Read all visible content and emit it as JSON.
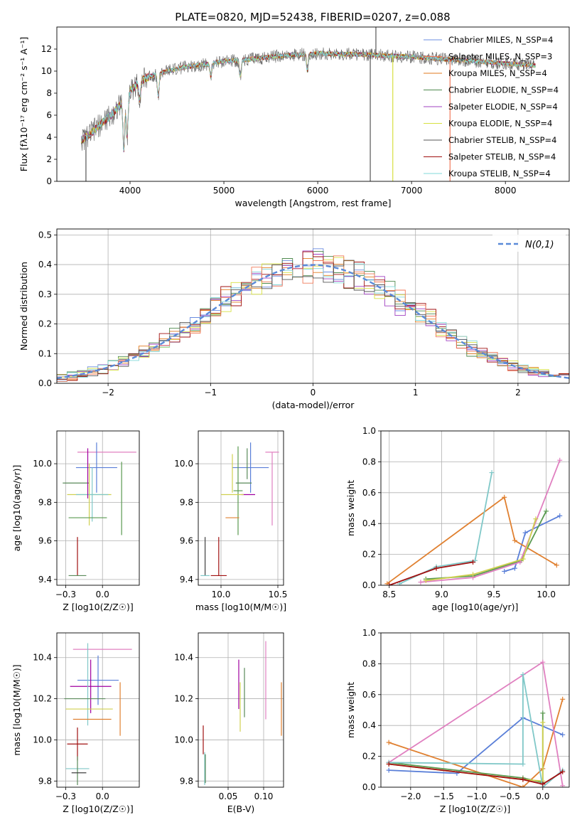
{
  "title": "PLATE=0820, MJD=52438, FIBERID=0207, z=0.088",
  "colors": {
    "series": [
      "#6b8ce0",
      "#f07a5a",
      "#e07a1c",
      "#4f8a4f",
      "#a040c0",
      "#d6e040",
      "#555555",
      "#a01010",
      "#80d8d8"
    ],
    "markers": [
      "#5a7fd8",
      "#e08030",
      "#5a9a50",
      "#e080c0",
      "#d0d050",
      "#80c8c8",
      "#a01010",
      "#a000a0",
      "#5a8a5a",
      "#404040"
    ],
    "gaussian": "#5a8ad8"
  },
  "chart_data": [
    {
      "id": "spectrum",
      "type": "line",
      "xlabel": "wavelength [Angstrom, rest frame]",
      "ylabel": "Flux [fλ10⁻¹⁷ erg cm⁻² s⁻¹ A⁻¹]",
      "xlim": [
        3220,
        8680
      ],
      "ylim": [
        0,
        14
      ],
      "xticks": [
        4000,
        5000,
        6000,
        7000,
        8000
      ],
      "yticks": [
        0,
        2,
        4,
        6,
        8,
        10,
        12
      ],
      "grid": false,
      "legend_position": "upper-right",
      "legend": [
        "Chabrier MILES, N_SSP=4",
        "Salpeter MILES, N_SSP=3",
        "Kroupa MILES, N_SSP=4",
        "Chabrier ELODIE, N_SSP=4",
        "Salpeter ELODIE, N_SSP=4",
        "Kroupa ELODIE, N_SSP=4",
        "Chabrier STELIB, N_SSP=4",
        "Salpeter STELIB, N_SSP=4",
        "Kroupa STELIB, N_SSP=4"
      ],
      "continuum": {
        "x": [
          3500,
          3600,
          3700,
          3800,
          3900,
          4000,
          4100,
          4200,
          4400,
          4600,
          4800,
          5000,
          5200,
          5500,
          5800,
          6000,
          6500,
          7000,
          7500,
          8000,
          8300
        ],
        "y": [
          3.8,
          4.5,
          5.3,
          6.0,
          7.0,
          8.2,
          9.0,
          9.5,
          10.0,
          10.4,
          10.6,
          10.9,
          11.0,
          11.3,
          11.5,
          11.6,
          11.5,
          11.3,
          11.0,
          10.7,
          10.5
        ]
      },
      "absorption_features": [
        {
          "x": 3934,
          "depth": 4.5
        },
        {
          "x": 3969,
          "depth": 3.8
        },
        {
          "x": 4102,
          "depth": 1.5
        },
        {
          "x": 4300,
          "depth": 2.0
        },
        {
          "x": 4861,
          "depth": 1.2
        },
        {
          "x": 5175,
          "depth": 1.5
        },
        {
          "x": 5890,
          "depth": 1.5
        }
      ],
      "data_spikes": [
        {
          "x": 3530,
          "y": 0
        },
        {
          "x": 6560,
          "y": 0
        },
        {
          "x": 6620,
          "y": 14
        },
        {
          "x": 6800,
          "y": 0
        },
        {
          "x": 7410,
          "y": 0
        }
      ]
    },
    {
      "id": "residuals",
      "type": "histogram",
      "xlabel": "(data-model)/error",
      "ylabel": "Normed distribution",
      "xlim": [
        -2.5,
        2.5
      ],
      "ylim": [
        0,
        0.52
      ],
      "xticks": [
        -2,
        -1,
        0,
        1,
        2
      ],
      "yticks": [
        0.0,
        0.1,
        0.2,
        0.3,
        0.4,
        0.5
      ],
      "grid": true,
      "bin_width": 0.1,
      "legend": [
        "N(0,1)"
      ],
      "legend_position": "upper-right"
    },
    {
      "id": "age-vs-Z",
      "type": "errorbar",
      "xlabel": "Z [log10(Z/Z☉)]",
      "ylabel": "age  [log10(age/yr)]",
      "xlim": [
        -0.31,
        0.25
      ],
      "ylim": [
        9.37,
        10.17
      ],
      "xticks": [
        -0.25,
        0.0
      ],
      "yticks": [
        9.4,
        9.6,
        9.8,
        10.0
      ],
      "grid": true,
      "points": [
        {
          "x": 0.03,
          "y": 10.06,
          "xerr": 0.2,
          "yerr": 0.0,
          "color": 3
        },
        {
          "x": -0.04,
          "y": 9.98,
          "xerr": 0.14,
          "yerr": 0.13,
          "color": 0
        },
        {
          "x": 0.13,
          "y": 9.82,
          "xerr": 0.0,
          "yerr": 0.19,
          "color": 2
        },
        {
          "x": -0.18,
          "y": 9.9,
          "xerr": 0.09,
          "yerr": 0.0,
          "color": 8
        },
        {
          "x": -0.09,
          "y": 9.84,
          "xerr": 0.15,
          "yerr": 0.16,
          "color": 4
        },
        {
          "x": -0.07,
          "y": 9.84,
          "xerr": 0.11,
          "yerr": 0.14,
          "color": 5
        },
        {
          "x": -0.1,
          "y": 9.95,
          "xerr": 0.0,
          "yerr": 0.13,
          "color": 7
        },
        {
          "x": -0.1,
          "y": 9.72,
          "xerr": 0.13,
          "yerr": 0.0,
          "color": 2
        },
        {
          "x": -0.17,
          "y": 9.52,
          "xerr": 0.0,
          "yerr": 0.1,
          "color": 6
        },
        {
          "x": -0.17,
          "y": 9.42,
          "xerr": 0.06,
          "yerr": 0.0,
          "color": 8
        }
      ]
    },
    {
      "id": "age-vs-mass",
      "type": "errorbar",
      "xlabel": "mass [log10(M/M☉)]",
      "ylabel": "",
      "xlim": [
        9.8,
        10.55
      ],
      "ylim": [
        9.37,
        10.17
      ],
      "xticks": [
        9.5,
        10.0,
        10.5
      ],
      "yticks": [
        9.4,
        9.6,
        9.8,
        10.0
      ],
      "grid": true,
      "points": [
        {
          "x": 10.45,
          "y": 10.06,
          "xerr": 0.06,
          "yerr": 0.0,
          "color": 3
        },
        {
          "x": 10.45,
          "y": 9.87,
          "xerr": 0.0,
          "yerr": 0.19,
          "color": 3
        },
        {
          "x": 10.26,
          "y": 9.98,
          "xerr": 0.16,
          "yerr": 0.13,
          "color": 0
        },
        {
          "x": 10.23,
          "y": 10.0,
          "xerr": 0.0,
          "yerr": 0.08,
          "color": 8
        },
        {
          "x": 10.15,
          "y": 9.86,
          "xerr": 0.04,
          "yerr": 0.23,
          "color": 2
        },
        {
          "x": 10.24,
          "y": 9.84,
          "xerr": 0.06,
          "yerr": 0.0,
          "color": 7
        },
        {
          "x": 10.2,
          "y": 9.9,
          "xerr": 0.07,
          "yerr": 0.0,
          "color": 8
        },
        {
          "x": 10.1,
          "y": 9.84,
          "xerr": 0.1,
          "yerr": 0.0,
          "color": 4
        },
        {
          "x": 10.1,
          "y": 9.95,
          "xerr": 0.0,
          "yerr": 0.1,
          "color": 4
        },
        {
          "x": 10.1,
          "y": 9.72,
          "xerr": 0.06,
          "yerr": 0.0,
          "color": 1
        },
        {
          "x": 9.98,
          "y": 9.52,
          "xerr": 0.0,
          "yerr": 0.1,
          "color": 6
        },
        {
          "x": 9.98,
          "y": 9.42,
          "xerr": 0.07,
          "yerr": 0.0,
          "color": 6
        },
        {
          "x": 9.86,
          "y": 9.52,
          "xerr": 0.0,
          "yerr": 0.1,
          "color": 9
        },
        {
          "x": 9.86,
          "y": 9.42,
          "xerr": 0.04,
          "yerr": 0.0,
          "color": 5
        }
      ]
    },
    {
      "id": "mass-weight-vs-age",
      "type": "line",
      "xlabel": "age  [log10(age/yr)]",
      "ylabel": "mass weight",
      "xlim": [
        8.42,
        10.22
      ],
      "ylim": [
        0,
        1
      ],
      "xticks": [
        8.5,
        9.0,
        9.5,
        10.0
      ],
      "yticks": [
        0.0,
        0.2,
        0.4,
        0.6,
        0.8,
        1.0
      ],
      "grid": true,
      "series": [
        {
          "color": 0,
          "x": [
            9.6,
            9.7,
            9.8,
            10.13
          ],
          "y": [
            0.09,
            0.11,
            0.34,
            0.45
          ]
        },
        {
          "color": 1,
          "x": [
            8.48,
            9.6,
            9.7,
            10.1
          ],
          "y": [
            0.01,
            0.57,
            0.29,
            0.13
          ]
        },
        {
          "color": 2,
          "x": [
            8.85,
            9.3,
            9.76,
            10.0
          ],
          "y": [
            0.04,
            0.06,
            0.16,
            0.48
          ]
        },
        {
          "color": 3,
          "x": [
            8.8,
            9.3,
            9.75,
            10.13
          ],
          "y": [
            0.02,
            0.05,
            0.15,
            0.81
          ]
        },
        {
          "color": 4,
          "x": [
            8.85,
            9.3,
            9.78,
            9.9
          ],
          "y": [
            0.03,
            0.07,
            0.17,
            0.43
          ]
        },
        {
          "color": 5,
          "x": [
            8.6,
            8.95,
            9.32,
            9.48
          ],
          "y": [
            0.01,
            0.12,
            0.16,
            0.73
          ]
        },
        {
          "color": 6,
          "x": [
            8.5,
            8.95,
            9.3
          ],
          "y": [
            0.0,
            0.11,
            0.15
          ]
        }
      ]
    },
    {
      "id": "mass-vs-Z",
      "type": "errorbar",
      "xlabel": "Z [log10(Z/Z☉)]",
      "ylabel": "mass [log10(M/M☉)]",
      "xlim": [
        -0.31,
        0.25
      ],
      "ylim": [
        9.77,
        10.52
      ],
      "xticks": [
        -0.25,
        0.0
      ],
      "yticks": [
        9.8,
        10.0,
        10.2,
        10.4
      ],
      "grid": true,
      "points": [
        {
          "x": 0.0,
          "y": 10.44,
          "xerr": 0.2,
          "yerr": 0.0,
          "color": 3
        },
        {
          "x": -0.03,
          "y": 10.29,
          "xerr": 0.14,
          "yerr": 0.12,
          "color": 0
        },
        {
          "x": -0.08,
          "y": 10.26,
          "xerr": 0.14,
          "yerr": 0.13,
          "color": 7
        },
        {
          "x": -0.1,
          "y": 10.27,
          "xerr": 0.0,
          "yerr": 0.2,
          "color": 5
        },
        {
          "x": -0.09,
          "y": 10.15,
          "xerr": 0.16,
          "yerr": 0.0,
          "color": 4
        },
        {
          "x": -0.12,
          "y": 10.2,
          "xerr": 0.14,
          "yerr": 0.0,
          "color": 8
        },
        {
          "x": -0.07,
          "y": 10.1,
          "xerr": 0.13,
          "yerr": 0.0,
          "color": 1
        },
        {
          "x": 0.12,
          "y": 10.15,
          "xerr": 0.0,
          "yerr": 0.13,
          "color": 1
        },
        {
          "x": -0.17,
          "y": 9.98,
          "xerr": 0.07,
          "yerr": 0.08,
          "color": 6
        },
        {
          "x": -0.17,
          "y": 9.86,
          "xerr": 0.08,
          "yerr": 0.0,
          "color": 5
        },
        {
          "x": -0.17,
          "y": 9.85,
          "xerr": 0.0,
          "yerr": 0.07,
          "color": 8
        },
        {
          "x": -0.16,
          "y": 9.84,
          "xerr": 0.05,
          "yerr": 0.0,
          "color": 9
        }
      ]
    },
    {
      "id": "mass-vs-EBV",
      "type": "errorbar",
      "xlabel": "E(B-V)",
      "ylabel": "",
      "xlim": [
        0.008,
        0.128
      ],
      "ylim": [
        9.77,
        10.52
      ],
      "xticks": [
        0.05,
        0.1
      ],
      "yticks": [
        9.8,
        10.0,
        10.2,
        10.4
      ],
      "grid": true,
      "points": [
        {
          "x": 0.103,
          "y": 10.29,
          "xerr": 0.0,
          "yerr": 0.19,
          "color": 3
        },
        {
          "x": 0.125,
          "y": 10.15,
          "xerr": 0.0,
          "yerr": 0.13,
          "color": 1
        },
        {
          "x": 0.065,
          "y": 10.27,
          "xerr": 0.0,
          "yerr": 0.12,
          "color": 7
        },
        {
          "x": 0.073,
          "y": 10.23,
          "xerr": 0.0,
          "yerr": 0.12,
          "color": 8
        },
        {
          "x": 0.067,
          "y": 10.16,
          "xerr": 0.0,
          "yerr": 0.12,
          "color": 4
        },
        {
          "x": 0.015,
          "y": 10.0,
          "xerr": 0.0,
          "yerr": 0.07,
          "color": 6
        },
        {
          "x": 0.017,
          "y": 9.86,
          "xerr": 0.0,
          "yerr": 0.08,
          "color": 5
        },
        {
          "x": 0.018,
          "y": 9.86,
          "xerr": 0.0,
          "yerr": 0.07,
          "color": 8
        }
      ]
    },
    {
      "id": "mass-weight-vs-Z",
      "type": "line",
      "xlabel": "Z [log10(Z/Z☉)]",
      "ylabel": "mass weight",
      "xlim": [
        -2.45,
        0.4
      ],
      "ylim": [
        0,
        1
      ],
      "xticks": [
        -2.0,
        -1.5,
        -1.0,
        -0.5,
        0.0
      ],
      "yticks": [
        0.0,
        0.2,
        0.4,
        0.6,
        0.8,
        1.0
      ],
      "grid": true,
      "series": [
        {
          "color": 0,
          "x": [
            -2.33,
            -1.3,
            -0.3,
            0.3
          ],
          "y": [
            0.11,
            0.09,
            0.45,
            0.34
          ]
        },
        {
          "color": 1,
          "x": [
            -2.33,
            -0.3,
            0.0,
            0.3
          ],
          "y": [
            0.29,
            0.0,
            0.12,
            0.57
          ]
        },
        {
          "color": 2,
          "x": [
            -2.33,
            -0.3,
            0.0,
            0.0
          ],
          "y": [
            0.16,
            0.06,
            0.03,
            0.48
          ]
        },
        {
          "color": 3,
          "x": [
            -2.33,
            0.0,
            0.3
          ],
          "y": [
            0.16,
            0.81,
            0.01
          ]
        },
        {
          "color": 4,
          "x": [
            -2.33,
            -0.3,
            0.0,
            0.0
          ],
          "y": [
            0.15,
            0.05,
            0.04,
            0.42
          ]
        },
        {
          "color": 5,
          "x": [
            -2.33,
            -0.3,
            -0.3,
            0.0,
            0.3
          ],
          "y": [
            0.16,
            0.15,
            0.73,
            0.0,
            0.11
          ]
        },
        {
          "color": 6,
          "x": [
            -2.33,
            -0.3,
            0.0,
            0.3
          ],
          "y": [
            0.15,
            0.05,
            0.02,
            0.1
          ]
        }
      ]
    }
  ]
}
